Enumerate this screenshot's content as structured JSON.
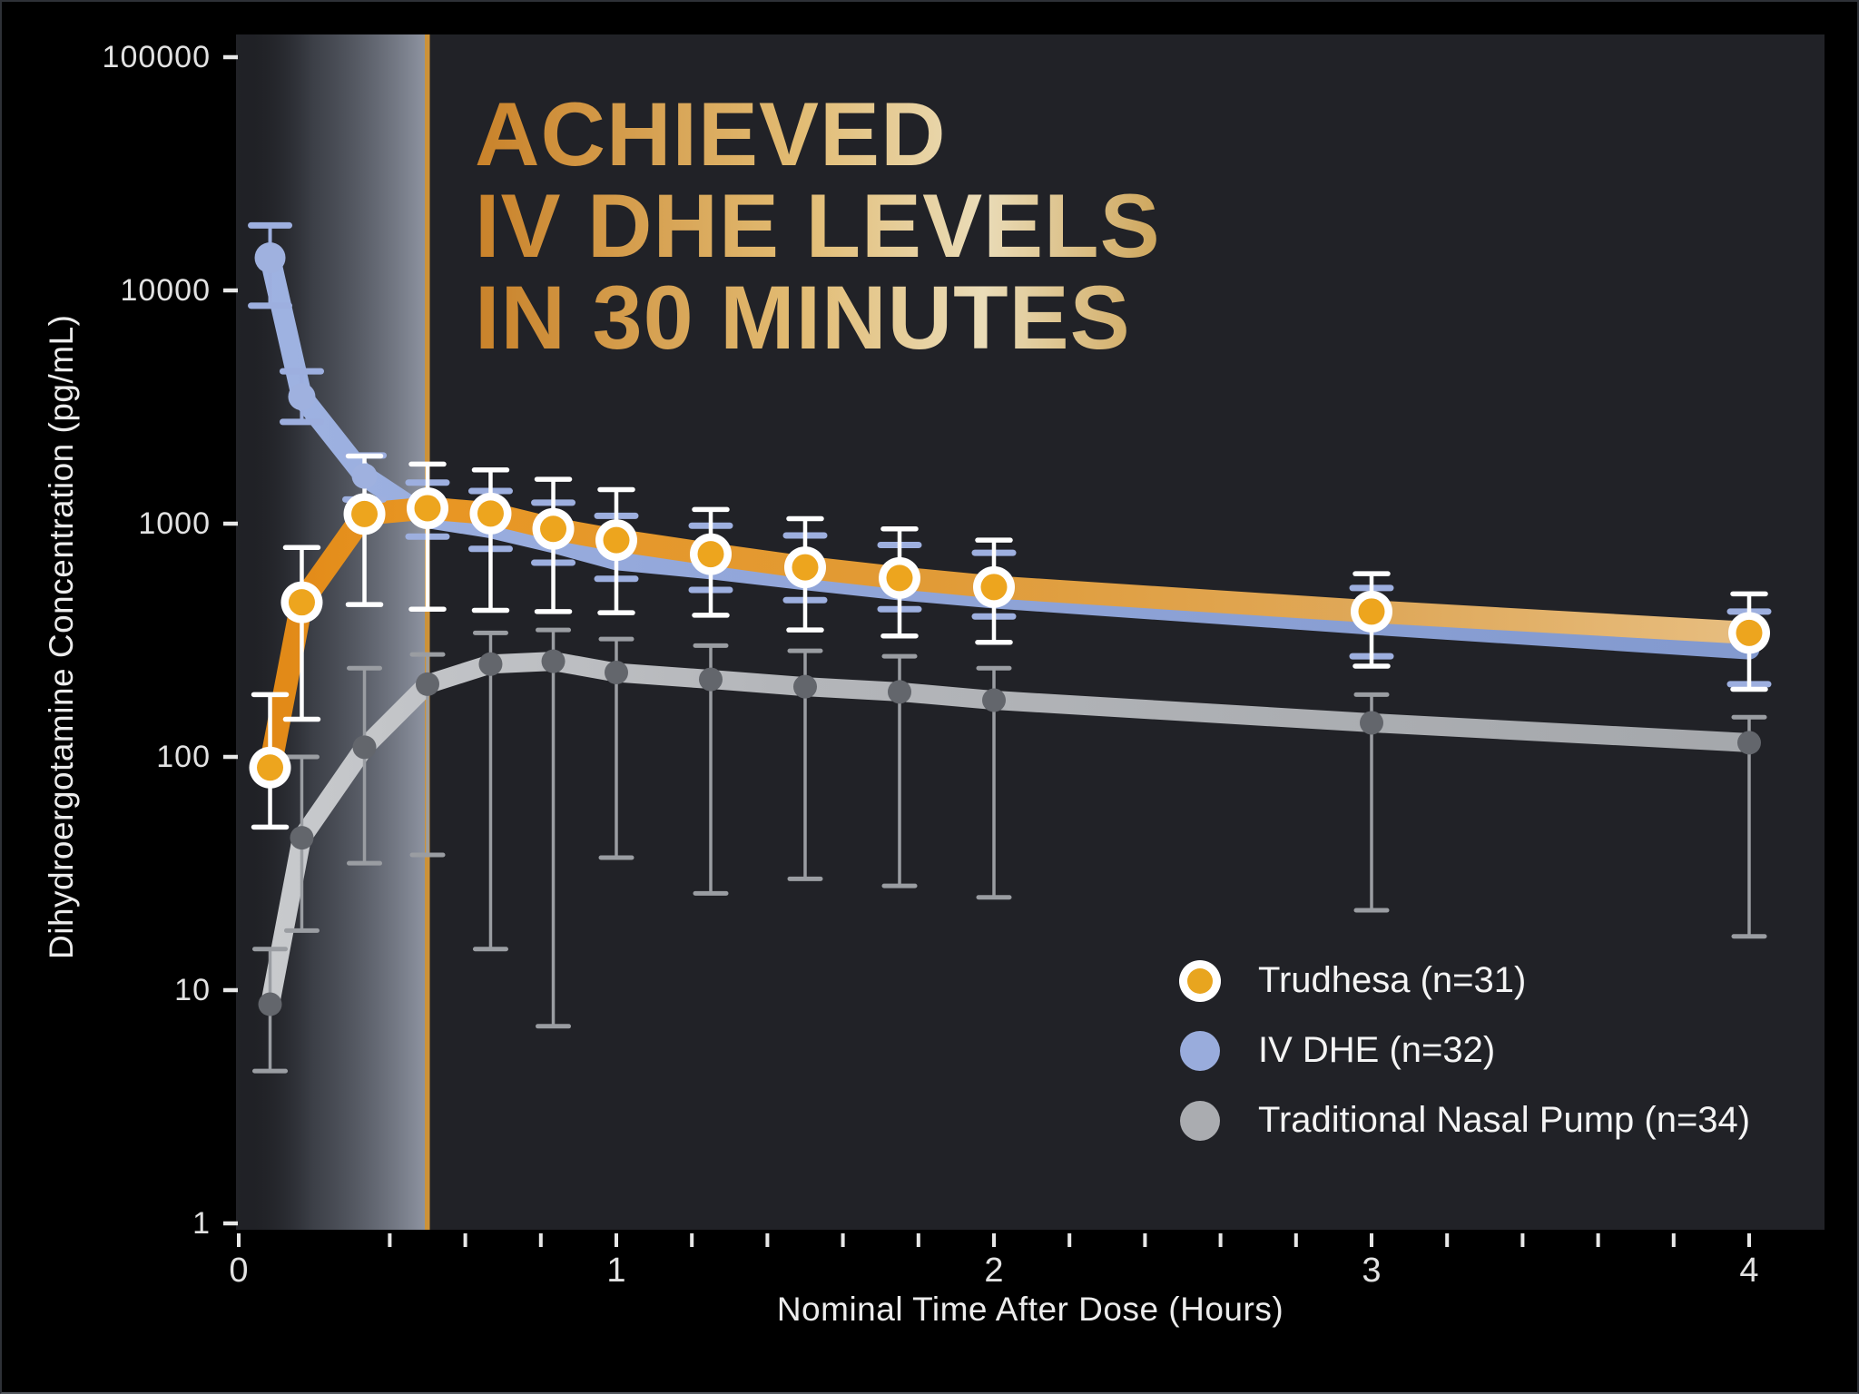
{
  "chart_data": {
    "type": "line",
    "title": {
      "line1": "ACHIEVED",
      "line2": "IV DHE LEVELS",
      "line3": "IN 30 MINUTES"
    },
    "xlabel": "Nominal Time After Dose (Hours)",
    "ylabel": "Dihydroergotamine Concentration (pg/mL)",
    "x_axis": {
      "range": [
        0,
        4.25
      ],
      "major_ticks": [
        0,
        1,
        2,
        3,
        4
      ],
      "major_tick_labels": [
        "0",
        "1",
        "2",
        "3",
        "4"
      ],
      "minor_tick_step": 0.2,
      "missing_minor_ticks": [
        0.2
      ]
    },
    "y_axis": {
      "scale": "log",
      "range": [
        1,
        100000
      ],
      "ticks": [
        1,
        10,
        100,
        1000,
        10000,
        100000
      ],
      "tick_labels": [
        "1",
        "10",
        "100",
        "1000",
        "10000",
        "100000"
      ]
    },
    "annotations": {
      "shaded_region_hours": [
        0,
        0.5
      ],
      "vertical_line_hour": 0.5,
      "vertical_line_color": "#cc9239"
    },
    "times_hours": [
      0.083,
      0.167,
      0.333,
      0.5,
      0.667,
      0.833,
      1.0,
      1.25,
      1.5,
      1.75,
      2.0,
      3.0,
      4.0
    ],
    "series": [
      {
        "name": "Trudhesa (n=31)",
        "color": "#e89a28",
        "marker": "orange-dot-white-ring",
        "values": [
          90,
          460,
          1100,
          1165,
          1105,
          950,
          850,
          740,
          650,
          585,
          535,
          420,
          340
        ],
        "err_lo": [
          50,
          145,
          450,
          430,
          425,
          420,
          415,
          405,
          350,
          330,
          310,
          245,
          195
        ],
        "err_hi": [
          185,
          790,
          1950,
          1800,
          1700,
          1550,
          1400,
          1150,
          1050,
          950,
          850,
          610,
          500
        ]
      },
      {
        "name": "IV DHE (n=32)",
        "color": "#93a7da",
        "marker": "blue-dot",
        "values": [
          13800,
          3500,
          1600,
          1060,
          960,
          830,
          700,
          640,
          575,
          520,
          480,
          370,
          290
        ],
        "err_lo": [
          8600,
          2730,
          1270,
          880,
          780,
          680,
          580,
          520,
          470,
          430,
          400,
          270,
          205
        ],
        "err_hi": [
          19000,
          4500,
          1960,
          1500,
          1380,
          1230,
          1080,
          980,
          890,
          810,
          750,
          530,
          420
        ]
      },
      {
        "name": "Traditional Nasal Pump (n=34)",
        "color": "#b2b4b8",
        "marker": "gray-dot",
        "values": [
          8.7,
          45,
          110,
          205,
          250,
          257,
          230,
          215,
          200,
          190,
          175,
          140,
          115
        ],
        "err_lo": [
          4.5,
          18,
          35,
          38,
          15,
          7,
          37,
          26,
          30,
          28,
          25,
          22,
          17
        ],
        "err_hi": [
          15,
          100,
          240,
          275,
          340,
          350,
          320,
          300,
          285,
          270,
          240,
          185,
          148
        ]
      }
    ]
  },
  "legend": {
    "items": [
      {
        "label": "Trudhesa (n=31)",
        "swatch": "ring",
        "outer_color": "#ffffff",
        "inner_color": "#e8a51f"
      },
      {
        "label": "IV DHE (n=32)",
        "swatch": "solid",
        "outer_color": "#99acdc",
        "inner_color": "#99acdc"
      },
      {
        "label": "Traditional Nasal Pump (n=34)",
        "swatch": "solid",
        "outer_color": "#aaacb0",
        "inner_color": "#aaacb0"
      }
    ]
  },
  "colors": {
    "background": "#000000",
    "plot_background": "#212227",
    "axis_text": "#e2e2e2",
    "error_bar_trudhesa": "#ffffff",
    "error_bar_ivdhe": "#9dafdf",
    "error_bar_nasal": "#9a9da2",
    "title_gold_dark": "#c9822a",
    "title_gold_light": "#eadcb8"
  }
}
